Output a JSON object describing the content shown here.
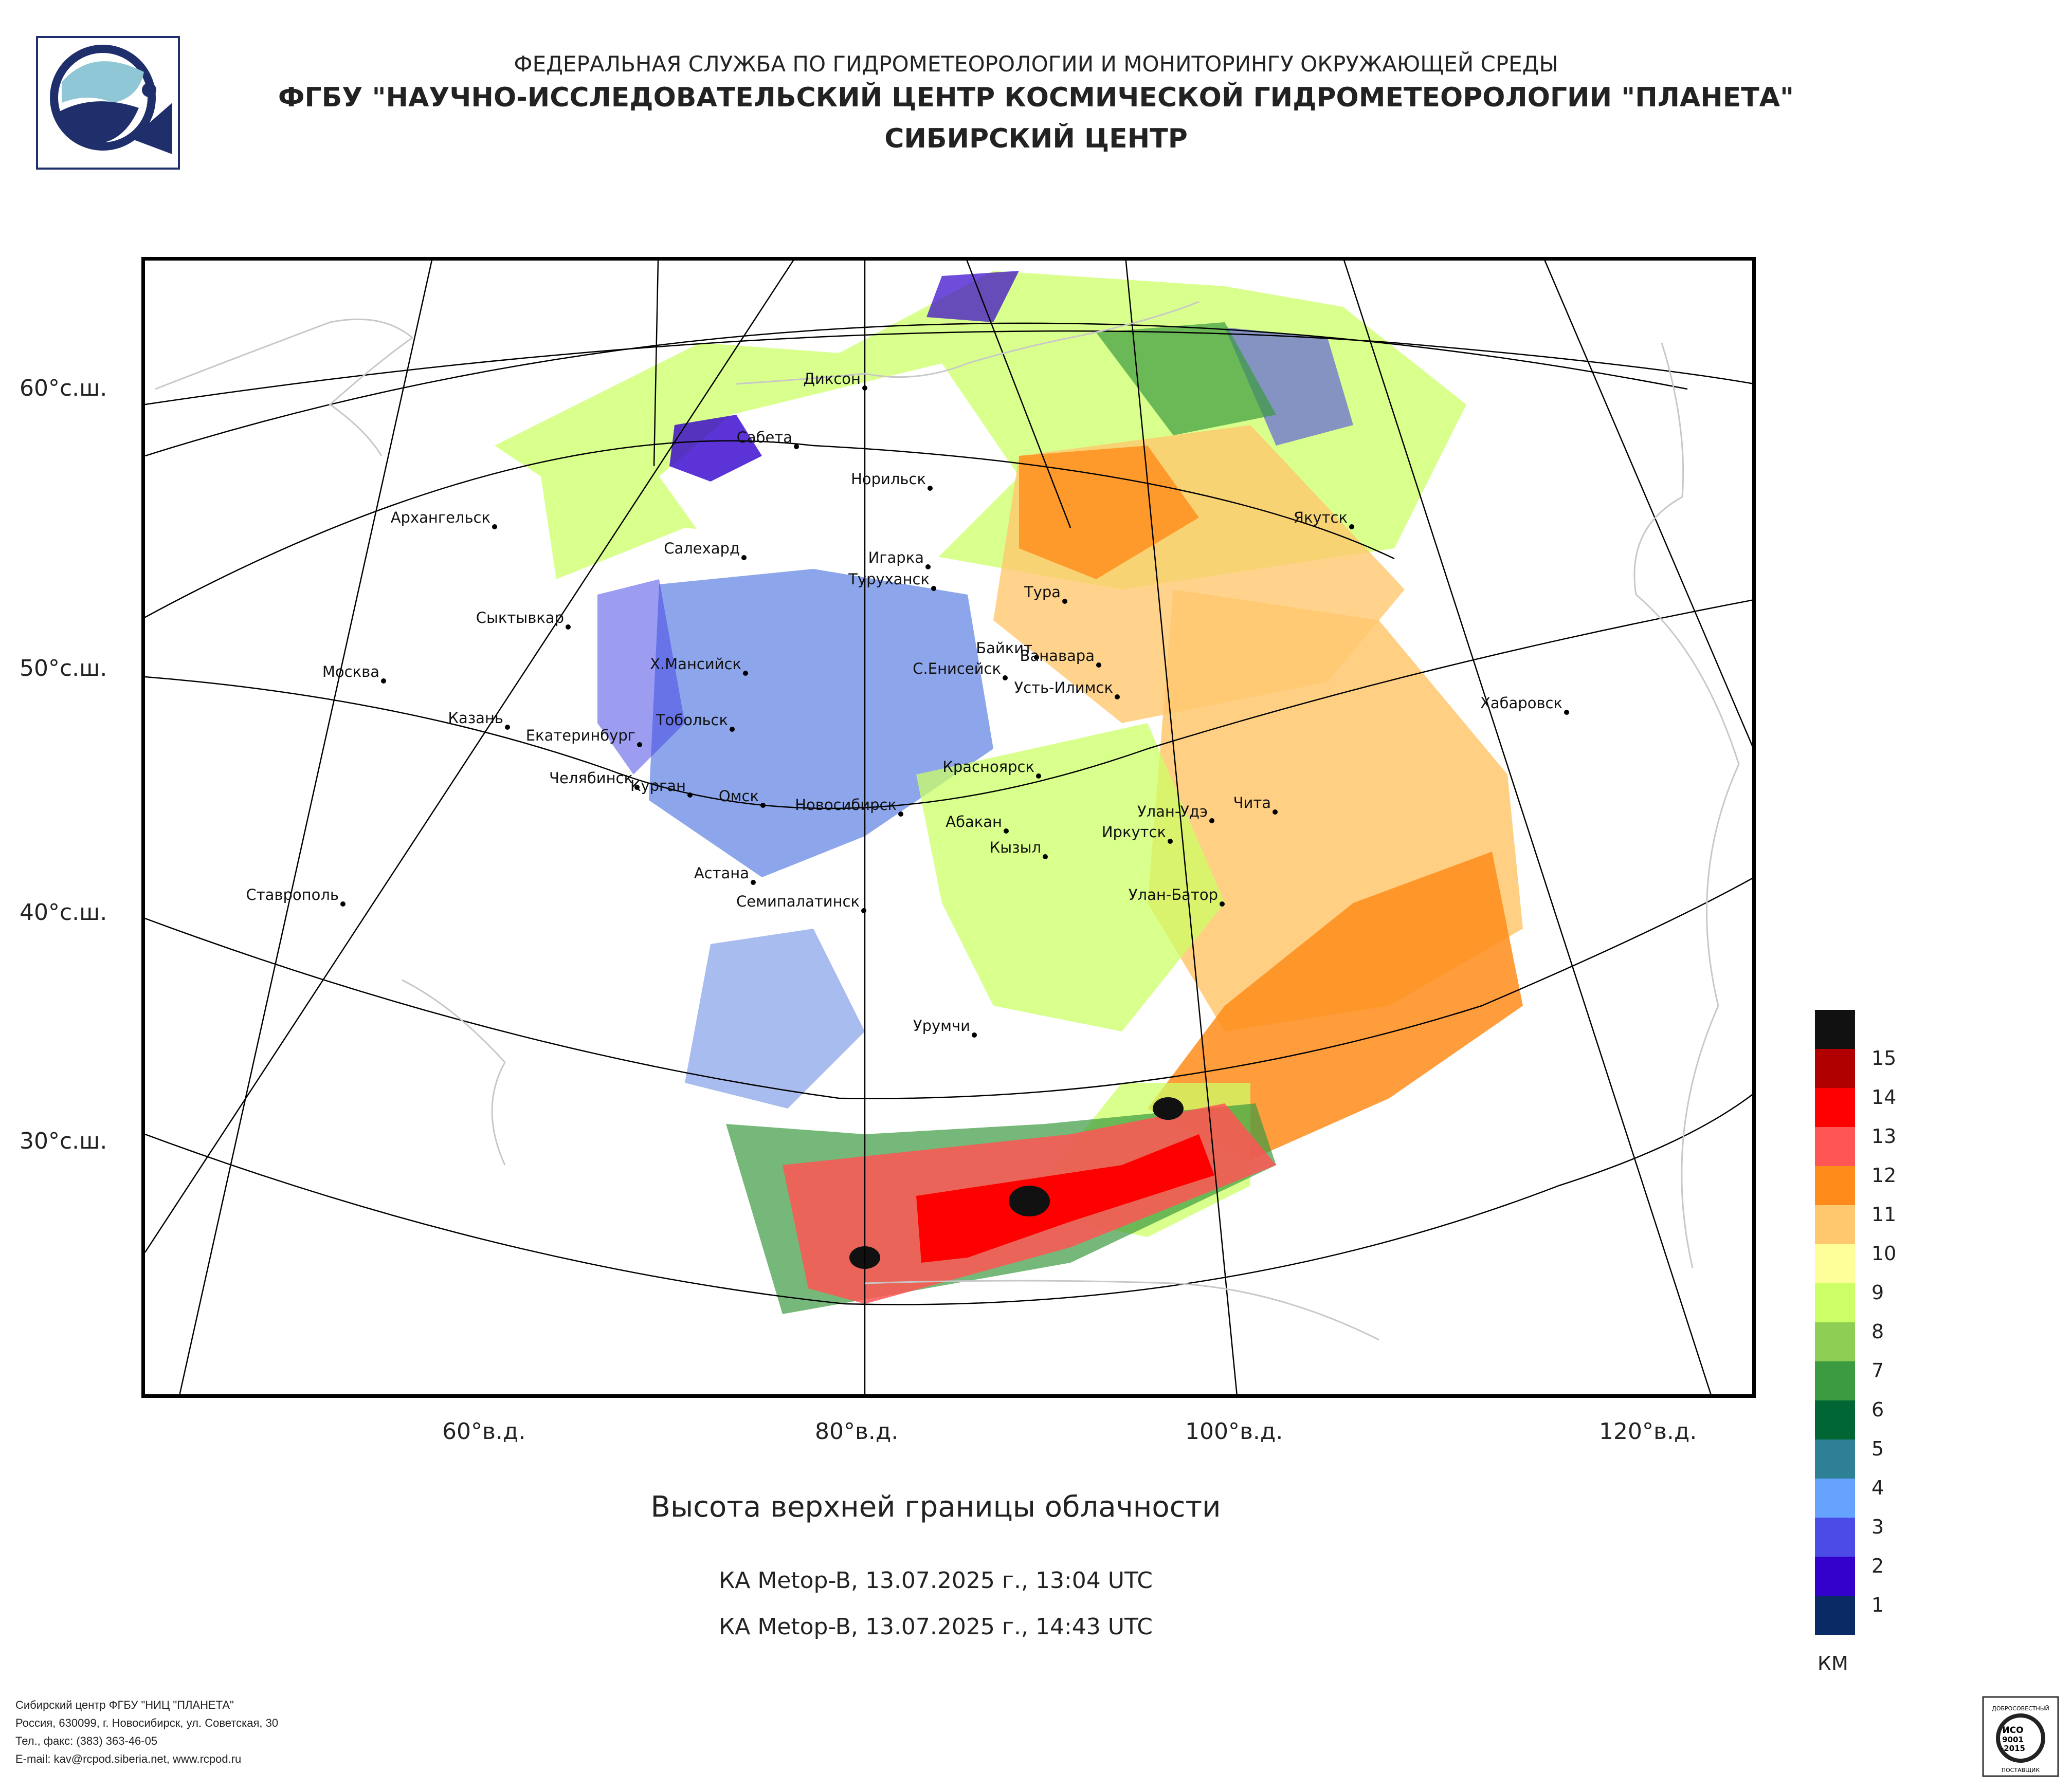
{
  "header": {
    "line1": "ФЕДЕРАЛЬНАЯ СЛУЖБА ПО ГИДРОМЕТЕОРОЛОГИИ И МОНИТОРИНГУ ОКРУЖАЮЩЕЙ СРЕДЫ",
    "line2": "ФГБУ \"НАУЧНО-ИССЛЕДОВАТЕЛЬСКИЙ ЦЕНТР КОСМИЧЕСКОЙ ГИДРОМЕТЕОРОЛОГИИ \"ПЛАНЕТА\"",
    "line3": "СИБИРСКИЙ ЦЕНТР"
  },
  "logo": {
    "icon": "planeta-logo-icon"
  },
  "map": {
    "lat_labels": [
      "60°с.ш.",
      "50°с.ш.",
      "40°с.ш.",
      "30°с.ш."
    ],
    "lon_labels": [
      "60°в.д.",
      "80°в.д.",
      "100°в.д.",
      "120°в.д."
    ],
    "cities": [
      "Диксон",
      "Сабета",
      "Норильск",
      "Архангельск",
      "Якутск",
      "Салехард",
      "Игарка",
      "Туруханск",
      "Тура",
      "Сыктывкар",
      "Байкит",
      "Ванавара",
      "Москва",
      "Х.Мансийск",
      "С.Енисейск",
      "Усть-Илимск",
      "Хабаровск",
      "Казань",
      "Тобольск",
      "Екатеринбург",
      "Красноярск",
      "Челябинск",
      "Курган",
      "Омск",
      "Новосибирск",
      "Абакан",
      "Чита",
      "Улан-Удэ",
      "Иркутск",
      "Кызыл",
      "Астана",
      "Ставрополь",
      "Улан-Батор",
      "Семипалатинск",
      "Урумчи"
    ]
  },
  "title": "Высота верхней границы облачности",
  "passes": [
    "КА Metop-B, 13.07.2025 г., 13:04 UTC",
    "КА Metop-B, 13.07.2025 г., 14:43 UTC"
  ],
  "legend": {
    "unit": "КМ",
    "items": [
      {
        "label": "",
        "color": "#111111"
      },
      {
        "label": "15",
        "color": "#b00000"
      },
      {
        "label": "14",
        "color": "#ff0000"
      },
      {
        "label": "13",
        "color": "#ff5555"
      },
      {
        "label": "12",
        "color": "#ff8c1a"
      },
      {
        "label": "11",
        "color": "#ffc86e"
      },
      {
        "label": "10",
        "color": "#ffff99"
      },
      {
        "label": "9",
        "color": "#ccff66"
      },
      {
        "label": "8",
        "color": "#8fce55"
      },
      {
        "label": "7",
        "color": "#3c9a40"
      },
      {
        "label": "6",
        "color": "#006633"
      },
      {
        "label": "5",
        "color": "#2e8097"
      },
      {
        "label": "4",
        "color": "#66a3ff"
      },
      {
        "label": "3",
        "color": "#4b4be6"
      },
      {
        "label": "2",
        "color": "#3300cc"
      },
      {
        "label": "1",
        "color": "#0a2a66"
      }
    ]
  },
  "footer": {
    "line1": "Сибирский центр ФГБУ \"НИЦ \"ПЛАНЕТА\"",
    "line2": "Россия, 630099, г. Новосибирск, ул. Советская, 30",
    "line3": "Тел., факс: (383) 363-46-05",
    "line4": "E-mail: kav@rcpod.siberia.net, www.rcpod.ru"
  },
  "badge": {
    "icon": "iso-9001-badge-icon",
    "top": "ДОБРОСОВЕСТНЫЙ",
    "l1": "ИСО",
    "l2": "9001",
    "l3": "-2015",
    "bottom": "ПОСТАВЩИК"
  }
}
